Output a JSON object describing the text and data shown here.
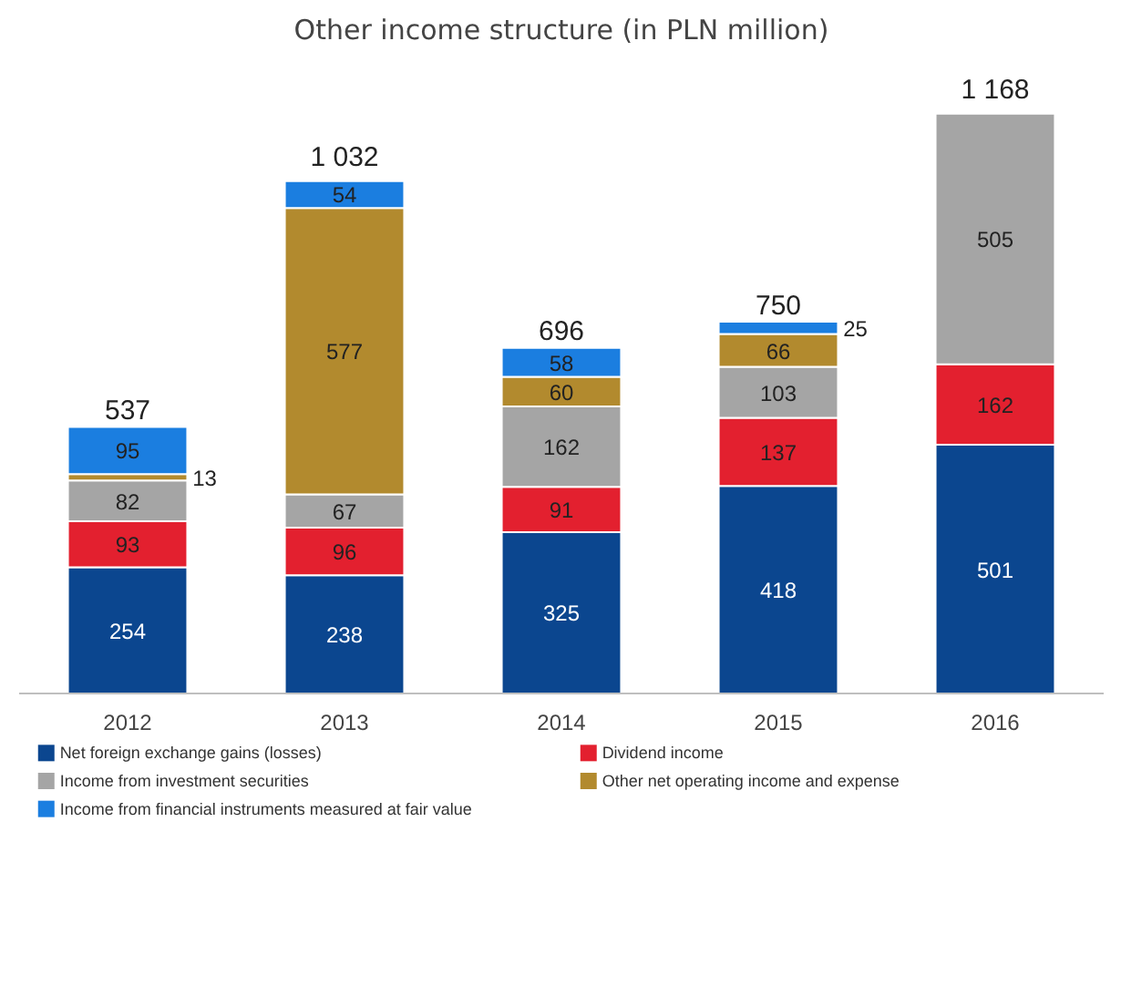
{
  "chart_data": {
    "type": "bar",
    "title": "Other income structure (in PLN million)",
    "stacked": true,
    "data_labels": true,
    "legend": "bottom",
    "grid": false,
    "categories": [
      "2012",
      "2013",
      "2014",
      "2015",
      "2016"
    ],
    "series": [
      {
        "name": "Net foreign exchange gains (losses)",
        "color": "#0b468f",
        "values": [
          254,
          238,
          325,
          418,
          501
        ]
      },
      {
        "name": "Dividend income",
        "color": "#e3202f",
        "values": [
          93,
          96,
          91,
          137,
          162
        ]
      },
      {
        "name": "Income from investment securities",
        "color": "#a5a5a5",
        "values": [
          82,
          67,
          162,
          103,
          505
        ]
      },
      {
        "name": "Other net operating income and expense",
        "color": "#b28a2e",
        "values": [
          13,
          577,
          60,
          66,
          null
        ]
      },
      {
        "name": "Income from financial instruments measured at fair value",
        "color": "#1b7ee0",
        "values": [
          95,
          54,
          58,
          25,
          null
        ]
      }
    ],
    "totals": [
      "537",
      "1 032",
      "696",
      "750",
      "1 168"
    ]
  }
}
